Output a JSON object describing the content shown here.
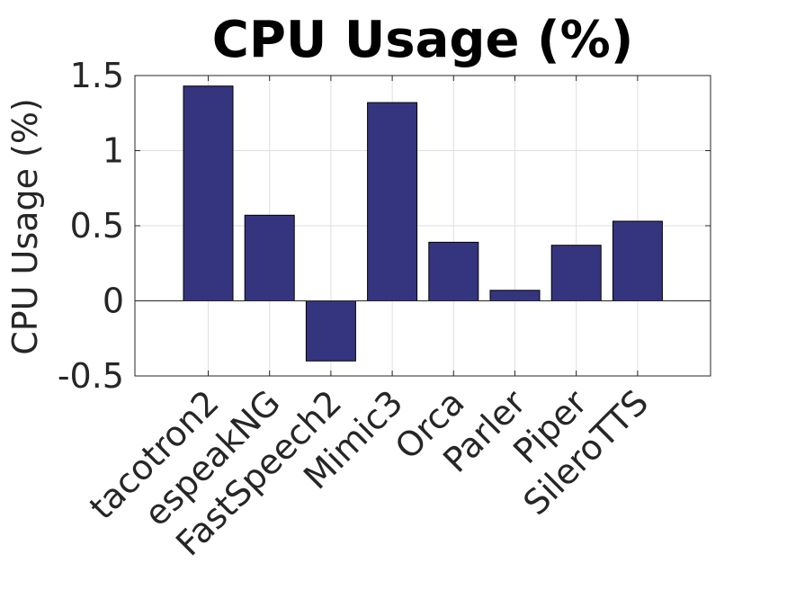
{
  "chart_data": {
    "type": "bar",
    "title": "CPU Usage (%)",
    "xlabel": "",
    "ylabel": "CPU Usage (%)",
    "categories": [
      "tacotron2",
      "espeakNG",
      "FastSpeech2",
      "Mimic3",
      "Orca",
      "Parler",
      "Piper",
      "SileroTTS"
    ],
    "values": [
      1.43,
      0.57,
      -0.4,
      1.32,
      0.39,
      0.07,
      0.37,
      0.53
    ],
    "ylim": [
      -0.5,
      1.5
    ],
    "yticks": [
      -0.5,
      0,
      0.5,
      1,
      1.5
    ],
    "ytick_labels": [
      "-0.5",
      "0",
      "0.5",
      "1",
      "1.5"
    ],
    "grid": true,
    "bar_color": "#35357f"
  }
}
